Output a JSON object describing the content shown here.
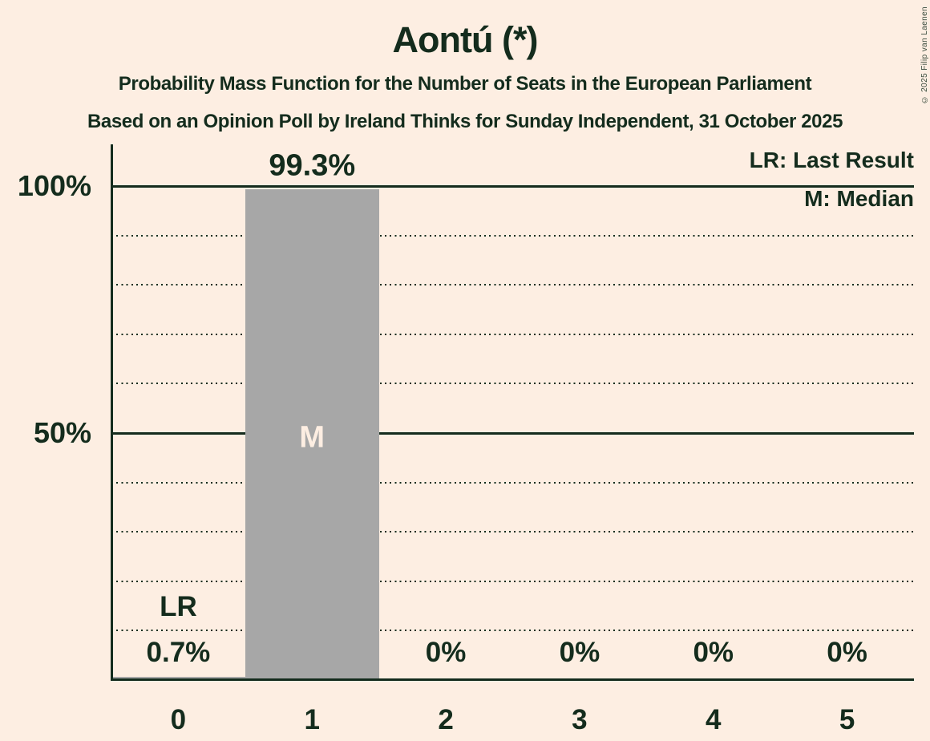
{
  "title": "Aontú (*)",
  "subtitle1": "Probability Mass Function for the Number of Seats in the European Parliament",
  "subtitle2": "Based on an Opinion Poll by Ireland Thinks for Sunday Independent, 31 October 2025",
  "copyright": "© 2025 Filip van Laenen",
  "legend": {
    "lr": "LR: Last Result",
    "m": "M: Median"
  },
  "colors": {
    "background": "#fdeee2",
    "text": "#142c1d",
    "bar": "#a7a7a7",
    "bar_label": "#fdeee2"
  },
  "chart_data": {
    "type": "bar",
    "title": "Aontú (*)",
    "categories": [
      "0",
      "1",
      "2",
      "3",
      "4",
      "5"
    ],
    "values": [
      0.7,
      99.3,
      0,
      0,
      0,
      0
    ],
    "value_labels": [
      "0.7%",
      "99.3%",
      "0%",
      "0%",
      "0%",
      "0%"
    ],
    "ylim": [
      0,
      100
    ],
    "yticks": [
      {
        "value": 50,
        "label": "50%"
      },
      {
        "value": 100,
        "label": "100%"
      }
    ],
    "gridlines_percent": [
      10,
      20,
      30,
      40,
      60,
      70,
      80,
      90
    ],
    "grid": "dotted horizontal, solid at 50% and 100%",
    "legend_position": "top-right",
    "annotations": {
      "last_result_seats": 0,
      "lr_marker": "LR",
      "median_seats": 1,
      "median_marker": "M"
    }
  }
}
